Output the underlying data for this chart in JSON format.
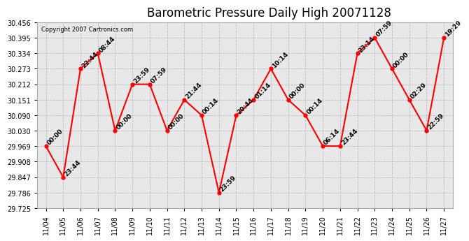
{
  "title": "Barometric Pressure Daily High 20071128",
  "copyright": "Copyright 2007 Cartronics.com",
  "x_labels": [
    "11/04",
    "11/05",
    "11/06",
    "11/07",
    "11/08",
    "11/09",
    "11/10",
    "11/11",
    "11/12",
    "11/13",
    "11/14",
    "11/15",
    "11/16",
    "11/17",
    "11/18",
    "11/19",
    "11/20",
    "11/21",
    "11/22",
    "11/23",
    "11/24",
    "11/25",
    "11/26",
    "11/27"
  ],
  "y_values": [
    29.969,
    29.847,
    30.273,
    30.334,
    30.03,
    30.212,
    30.212,
    30.03,
    30.151,
    30.09,
    29.786,
    30.09,
    30.151,
    30.273,
    30.151,
    30.09,
    29.969,
    29.969,
    30.334,
    30.395,
    30.273,
    30.151,
    30.03,
    30.395
  ],
  "time_labels": [
    "00:00",
    "23:44",
    "22:44",
    "08:44",
    "00:00",
    "23:59",
    "07:59",
    "00:00",
    "21:44",
    "00:14",
    "23:59",
    "20:44",
    "01:14",
    "10:14",
    "00:00",
    "00:14",
    "06:14",
    "23:44",
    "23:14",
    "07:59",
    "00:00",
    "02:29",
    "22:59",
    "19:29"
  ],
  "ylim_min": 29.725,
  "ylim_max": 30.456,
  "yticks": [
    29.725,
    29.786,
    29.847,
    29.908,
    29.969,
    30.03,
    30.09,
    30.151,
    30.212,
    30.273,
    30.334,
    30.395,
    30.456
  ],
  "line_color": "red",
  "marker_color": "red",
  "bg_color": "#ffffff",
  "plot_bg": "#e8e8e8",
  "grid_color": "#bbbbbb",
  "title_fontsize": 12,
  "tick_fontsize": 7,
  "annotation_fontsize": 6.5
}
